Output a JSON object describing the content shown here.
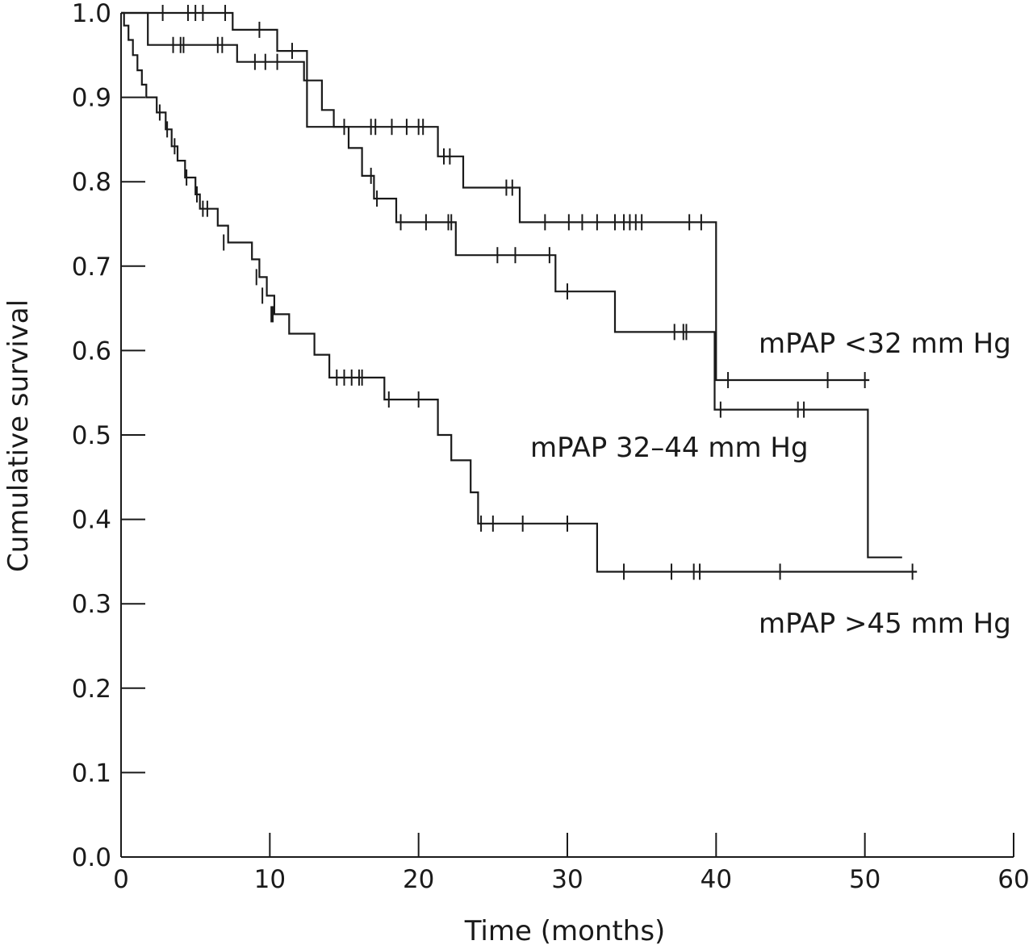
{
  "chart_data": {
    "type": "line",
    "subtype": "kaplan-meier-step",
    "title": "",
    "xlabel": "Time (months)",
    "ylabel": "Cumulative survival",
    "xlim": [
      0,
      60
    ],
    "ylim": [
      0.0,
      1.0
    ],
    "x_ticks": [
      0,
      10,
      20,
      30,
      40,
      50,
      60
    ],
    "x_tick_labels": [
      "0",
      "10",
      "20",
      "30",
      "40",
      "50",
      "60"
    ],
    "y_ticks": [
      0.0,
      0.1,
      0.2,
      0.3,
      0.4,
      0.5,
      0.6,
      0.7,
      0.8,
      0.9,
      1.0
    ],
    "y_tick_labels": [
      "0.0",
      "0.1",
      "0.2",
      "0.3",
      "0.4",
      "0.5",
      "0.6",
      "0.7",
      "0.8",
      "0.9",
      "1.0"
    ],
    "grid": false,
    "legend": "none (series labelled directly on plot)",
    "line_color": "#1a1a1a",
    "series": [
      {
        "name": "mPAP <32 mm Hg",
        "steps": [
          [
            0,
            1.0
          ],
          [
            7.5,
            0.98
          ],
          [
            10.5,
            0.955
          ],
          [
            12.5,
            0.865
          ],
          [
            21.3,
            0.83
          ],
          [
            23,
            0.793
          ],
          [
            26.8,
            0.752
          ],
          [
            40,
            0.565
          ],
          [
            50.3,
            0.565
          ]
        ],
        "censored": [
          [
            2.8,
            1.0
          ],
          [
            4.5,
            1.0
          ],
          [
            5,
            1.0
          ],
          [
            5.5,
            1.0
          ],
          [
            7,
            1.0
          ],
          [
            9.3,
            0.98
          ],
          [
            11.5,
            0.955
          ],
          [
            15,
            0.865
          ],
          [
            16.8,
            0.865
          ],
          [
            17.1,
            0.865
          ],
          [
            18.2,
            0.865
          ],
          [
            19.2,
            0.865
          ],
          [
            20,
            0.865
          ],
          [
            20.3,
            0.865
          ],
          [
            21.7,
            0.83
          ],
          [
            22.1,
            0.83
          ],
          [
            25.9,
            0.793
          ],
          [
            26.3,
            0.793
          ],
          [
            28.5,
            0.752
          ],
          [
            30.1,
            0.752
          ],
          [
            31,
            0.752
          ],
          [
            32,
            0.752
          ],
          [
            33.2,
            0.752
          ],
          [
            33.8,
            0.752
          ],
          [
            34.2,
            0.752
          ],
          [
            34.6,
            0.752
          ],
          [
            35,
            0.752
          ],
          [
            38.2,
            0.752
          ],
          [
            39,
            0.752
          ],
          [
            40.8,
            0.565
          ],
          [
            47.5,
            0.565
          ],
          [
            50,
            0.565
          ]
        ]
      },
      {
        "name": "mPAP 32–44 mm Hg",
        "steps": [
          [
            0,
            1.0
          ],
          [
            1.8,
            0.962
          ],
          [
            7.8,
            0.942
          ],
          [
            12.3,
            0.92
          ],
          [
            13.5,
            0.885
          ],
          [
            14.3,
            0.865
          ],
          [
            15.3,
            0.84
          ],
          [
            16.2,
            0.807
          ],
          [
            17,
            0.78
          ],
          [
            18.5,
            0.752
          ],
          [
            22.5,
            0.713
          ],
          [
            29.2,
            0.67
          ],
          [
            33.2,
            0.622
          ],
          [
            39.9,
            0.53
          ],
          [
            50.2,
            0.355
          ],
          [
            52.5,
            0.355
          ]
        ],
        "censored": [
          [
            3.5,
            0.962
          ],
          [
            4.0,
            0.962
          ],
          [
            4.2,
            0.962
          ],
          [
            6.5,
            0.962
          ],
          [
            6.8,
            0.962
          ],
          [
            9,
            0.942
          ],
          [
            9.7,
            0.942
          ],
          [
            10.5,
            0.942
          ],
          [
            16.8,
            0.807
          ],
          [
            17.2,
            0.78
          ],
          [
            18.8,
            0.752
          ],
          [
            20.5,
            0.752
          ],
          [
            22,
            0.752
          ],
          [
            22.2,
            0.752
          ],
          [
            25.3,
            0.713
          ],
          [
            26.5,
            0.713
          ],
          [
            28.8,
            0.713
          ],
          [
            30,
            0.67
          ],
          [
            37.2,
            0.622
          ],
          [
            37.8,
            0.622
          ],
          [
            38.0,
            0.622
          ],
          [
            40.3,
            0.53
          ],
          [
            45.5,
            0.53
          ],
          [
            45.9,
            0.53
          ]
        ]
      },
      {
        "name": "mPAP >45 mm Hg",
        "steps": [
          [
            0,
            1.0
          ],
          [
            0.2,
            0.985
          ],
          [
            0.5,
            0.968
          ],
          [
            0.8,
            0.95
          ],
          [
            1.1,
            0.932
          ],
          [
            1.4,
            0.915
          ],
          [
            1.7,
            0.9
          ],
          [
            2.4,
            0.882
          ],
          [
            3.0,
            0.862
          ],
          [
            3.4,
            0.842
          ],
          [
            3.8,
            0.825
          ],
          [
            4.3,
            0.805
          ],
          [
            5,
            0.785
          ],
          [
            5.3,
            0.768
          ],
          [
            6.5,
            0.748
          ],
          [
            7.2,
            0.728
          ],
          [
            8.8,
            0.708
          ],
          [
            9.3,
            0.687
          ],
          [
            9.8,
            0.665
          ],
          [
            10.3,
            0.643
          ],
          [
            11.3,
            0.62
          ],
          [
            13.0,
            0.595
          ],
          [
            14.0,
            0.568
          ],
          [
            17.7,
            0.542
          ],
          [
            21.3,
            0.5
          ],
          [
            22.2,
            0.47
          ],
          [
            23.5,
            0.432
          ],
          [
            24,
            0.395
          ],
          [
            32,
            0.338
          ],
          [
            53.5,
            0.338
          ]
        ],
        "censored": [
          [
            2.6,
            0.882
          ],
          [
            3.1,
            0.862
          ],
          [
            3.6,
            0.842
          ],
          [
            4.4,
            0.805
          ],
          [
            5.1,
            0.785
          ],
          [
            5.5,
            0.768
          ],
          [
            5.8,
            0.768
          ],
          [
            6.9,
            0.728
          ],
          [
            9.1,
            0.687
          ],
          [
            9.5,
            0.665
          ],
          [
            10.1,
            0.643
          ],
          [
            10.2,
            0.643
          ],
          [
            14.5,
            0.568
          ],
          [
            15.0,
            0.568
          ],
          [
            15.5,
            0.568
          ],
          [
            16.0,
            0.568
          ],
          [
            16.2,
            0.568
          ],
          [
            18.0,
            0.542
          ],
          [
            20.0,
            0.542
          ],
          [
            24.2,
            0.395
          ],
          [
            25.0,
            0.395
          ],
          [
            27.0,
            0.395
          ],
          [
            30.0,
            0.395
          ],
          [
            33.8,
            0.338
          ],
          [
            37.0,
            0.338
          ],
          [
            38.5,
            0.338
          ],
          [
            38.9,
            0.338
          ],
          [
            44.3,
            0.338
          ],
          [
            53.2,
            0.338
          ]
        ]
      }
    ]
  }
}
